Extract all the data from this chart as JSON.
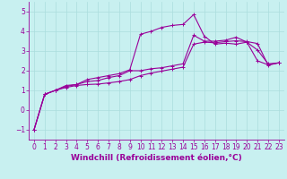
{
  "title": "",
  "xlabel": "Windchill (Refroidissement éolien,°C)",
  "bg_color": "#c8f0f0",
  "line_color": "#990099",
  "xlim": [
    -0.5,
    23.5
  ],
  "ylim": [
    -1.5,
    5.5
  ],
  "yticks": [
    -1,
    0,
    1,
    2,
    3,
    4,
    5
  ],
  "xticks": [
    0,
    1,
    2,
    3,
    4,
    5,
    6,
    7,
    8,
    9,
    10,
    11,
    12,
    13,
    14,
    15,
    16,
    17,
    18,
    19,
    20,
    21,
    22,
    23
  ],
  "series1_x": [
    0,
    1,
    2,
    3,
    4,
    5,
    6,
    7,
    8,
    9,
    10,
    11,
    12,
    13,
    14,
    15,
    16,
    17,
    18,
    19,
    20,
    21,
    22,
    23
  ],
  "series1_y": [
    -1.0,
    0.8,
    1.0,
    1.25,
    1.3,
    1.45,
    1.5,
    1.65,
    1.75,
    2.0,
    2.0,
    2.1,
    2.15,
    2.25,
    2.35,
    3.8,
    3.5,
    3.5,
    3.55,
    3.7,
    3.45,
    2.5,
    2.3,
    2.4
  ],
  "series2_x": [
    0,
    1,
    2,
    3,
    4,
    5,
    6,
    7,
    8,
    9,
    10,
    11,
    12,
    13,
    14,
    15,
    16,
    17,
    18,
    19,
    20,
    21,
    22,
    23
  ],
  "series2_y": [
    -1.0,
    0.8,
    1.0,
    1.2,
    1.3,
    1.55,
    1.65,
    1.75,
    1.85,
    2.05,
    3.85,
    4.0,
    4.2,
    4.3,
    4.35,
    4.85,
    3.75,
    3.35,
    3.4,
    3.35,
    3.45,
    3.05,
    2.35,
    2.4
  ],
  "series3_x": [
    0,
    1,
    2,
    3,
    4,
    5,
    6,
    7,
    8,
    9,
    10,
    11,
    12,
    13,
    14,
    15,
    16,
    17,
    18,
    19,
    20,
    21,
    22,
    23
  ],
  "series3_y": [
    -1.0,
    0.8,
    1.0,
    1.15,
    1.25,
    1.3,
    1.32,
    1.38,
    1.45,
    1.55,
    1.75,
    1.88,
    1.98,
    2.08,
    2.18,
    3.35,
    3.45,
    3.42,
    3.48,
    3.52,
    3.48,
    3.38,
    2.28,
    2.4
  ],
  "marker": "+",
  "markersize": 3.5,
  "linewidth": 0.8,
  "grid_color": "#aadddd",
  "tick_fontsize": 5.5,
  "xlabel_fontsize": 6.5
}
